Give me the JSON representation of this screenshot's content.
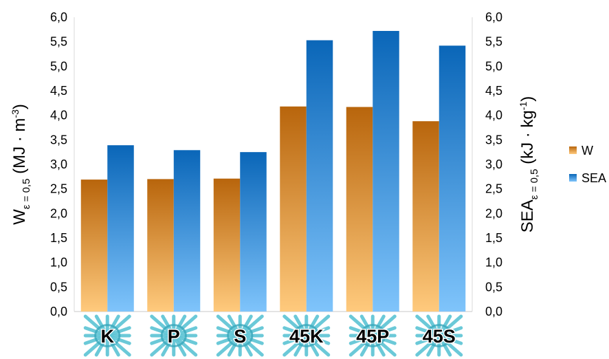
{
  "chart_data": {
    "type": "bar",
    "categories": [
      "K",
      "P",
      "S",
      "45K",
      "45P",
      "45S"
    ],
    "series": [
      {
        "name": "W",
        "axis": "left",
        "values": [
          2.69,
          2.7,
          2.71,
          4.18,
          4.17,
          3.88
        ],
        "color_top": "#b8650c",
        "color_bottom": "#ffca7d"
      },
      {
        "name": "SEA",
        "axis": "right",
        "values": [
          3.39,
          3.29,
          3.25,
          5.53,
          5.72,
          5.42
        ],
        "color_top": "#0a66b8",
        "color_bottom": "#7fc4fb"
      }
    ],
    "ylim": [
      0,
      6
    ],
    "y2lim": [
      0,
      6
    ],
    "yticks": [
      "0,0",
      "0,5",
      "1,0",
      "1,5",
      "2,0",
      "2,5",
      "3,0",
      "3,5",
      "4,0",
      "4,5",
      "5,0",
      "5,5",
      "6,0"
    ],
    "ylabel": {
      "main": "W",
      "sub": "ε = 0,5",
      "unit_prefix": " (MJ · m",
      "unit_sup": "-3",
      "unit_suffix": ")"
    },
    "y2label": {
      "main": "SEA",
      "sub": "ε = 0,5",
      "unit_prefix": " (kJ · kg",
      "unit_sup": "-1",
      "unit_suffix": ")"
    },
    "legend_position": "right",
    "category_icon": "lattice-unit-cell-icon",
    "icon_color": "#5bc4d4"
  }
}
